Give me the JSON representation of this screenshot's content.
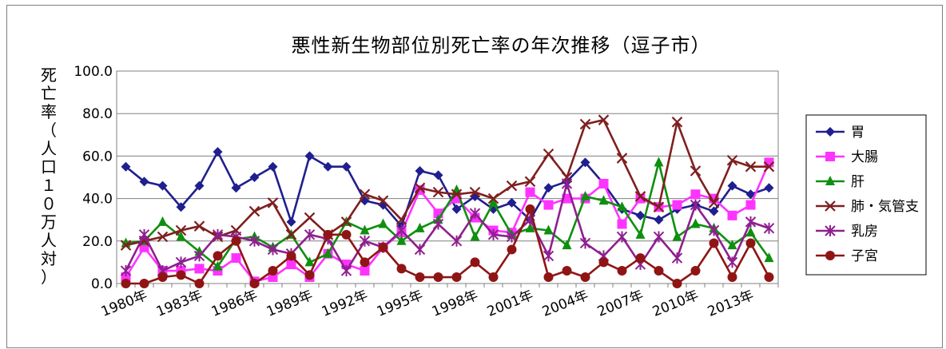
{
  "chart_data": {
    "type": "line",
    "title": "悪性新生物部位別死亡率の年次推移（逗子市）",
    "ylabel": "死亡率（人口１０万人対）",
    "xlabel": "",
    "ylim": [
      0,
      100
    ],
    "y_ticks": [
      "0.0",
      "20.0",
      "40.0",
      "60.0",
      "80.0",
      "100.0"
    ],
    "grid": true,
    "legend_position": "right",
    "x": [
      1980,
      1981,
      1982,
      1983,
      1984,
      1985,
      1986,
      1987,
      1988,
      1989,
      1990,
      1991,
      1992,
      1993,
      1994,
      1995,
      1996,
      1997,
      1998,
      1999,
      2000,
      2001,
      2002,
      2003,
      2004,
      2005,
      2006,
      2007,
      2008,
      2009,
      2010,
      2011,
      2012,
      2013,
      2014,
      2015
    ],
    "x_tick_labels": [
      "1980年",
      "1983年",
      "1986年",
      "1989年",
      "1992年",
      "1995年",
      "1998年",
      "2001年",
      "2004年",
      "2007年",
      "2010年",
      "2013年"
    ],
    "series": [
      {
        "name": "胃",
        "color": "#1f1f8f",
        "marker": "diamond",
        "values": [
          55,
          48,
          46,
          36,
          46,
          62,
          45,
          50,
          55,
          29,
          60,
          55,
          55,
          39,
          37,
          27,
          53,
          51,
          35,
          41,
          35,
          38,
          30,
          45,
          48,
          57,
          47,
          35,
          32,
          30,
          35,
          37,
          34,
          46,
          42,
          45
        ]
      },
      {
        "name": "大腸",
        "color": "#ff33ff",
        "marker": "square",
        "values": [
          3,
          17,
          6,
          6,
          7,
          6,
          12,
          1,
          3,
          9,
          3,
          14,
          9,
          6,
          17,
          24,
          44,
          33,
          40,
          31,
          25,
          24,
          43,
          37,
          40,
          40,
          47,
          28,
          40,
          36,
          37,
          42,
          40,
          32,
          37,
          57
        ]
      },
      {
        "name": "肝",
        "color": "#0f8f0f",
        "marker": "triangle",
        "values": [
          19,
          20,
          29,
          22,
          15,
          8,
          21,
          22,
          17,
          23,
          10,
          14,
          29,
          25,
          28,
          20,
          26,
          30,
          44,
          22,
          38,
          23,
          26,
          25,
          18,
          41,
          39,
          36,
          23,
          57,
          22,
          28,
          26,
          18,
          24,
          12
        ]
      },
      {
        "name": "肺・気管支",
        "color": "#7f1f1f",
        "marker": "x",
        "values": [
          18,
          20,
          22,
          25,
          27,
          22,
          25,
          34,
          38,
          23,
          31,
          23,
          29,
          42,
          39,
          30,
          45,
          43,
          42,
          43,
          40,
          46,
          48,
          61,
          50,
          75,
          77,
          59,
          41,
          36,
          76,
          53,
          38,
          58,
          55,
          55
        ]
      },
      {
        "name": "乳房",
        "color": "#8f1f8f",
        "marker": "star",
        "values": [
          6,
          23,
          6,
          10,
          13,
          23,
          22,
          20,
          16,
          14,
          23,
          21,
          6,
          20,
          17,
          25,
          16,
          28,
          20,
          33,
          23,
          22,
          30,
          13,
          47,
          19,
          13,
          22,
          9,
          22,
          12,
          37,
          25,
          10,
          29,
          26
        ]
      },
      {
        "name": "子宮",
        "color": "#8f1515",
        "marker": "circle",
        "values": [
          0,
          0,
          3,
          4,
          0,
          13,
          20,
          0,
          6,
          13,
          4,
          23,
          23,
          10,
          17,
          7,
          3,
          3,
          3,
          10,
          3,
          16,
          35,
          3,
          6,
          3,
          10,
          6,
          12,
          6,
          0,
          6,
          19,
          3,
          19,
          3
        ]
      }
    ]
  }
}
